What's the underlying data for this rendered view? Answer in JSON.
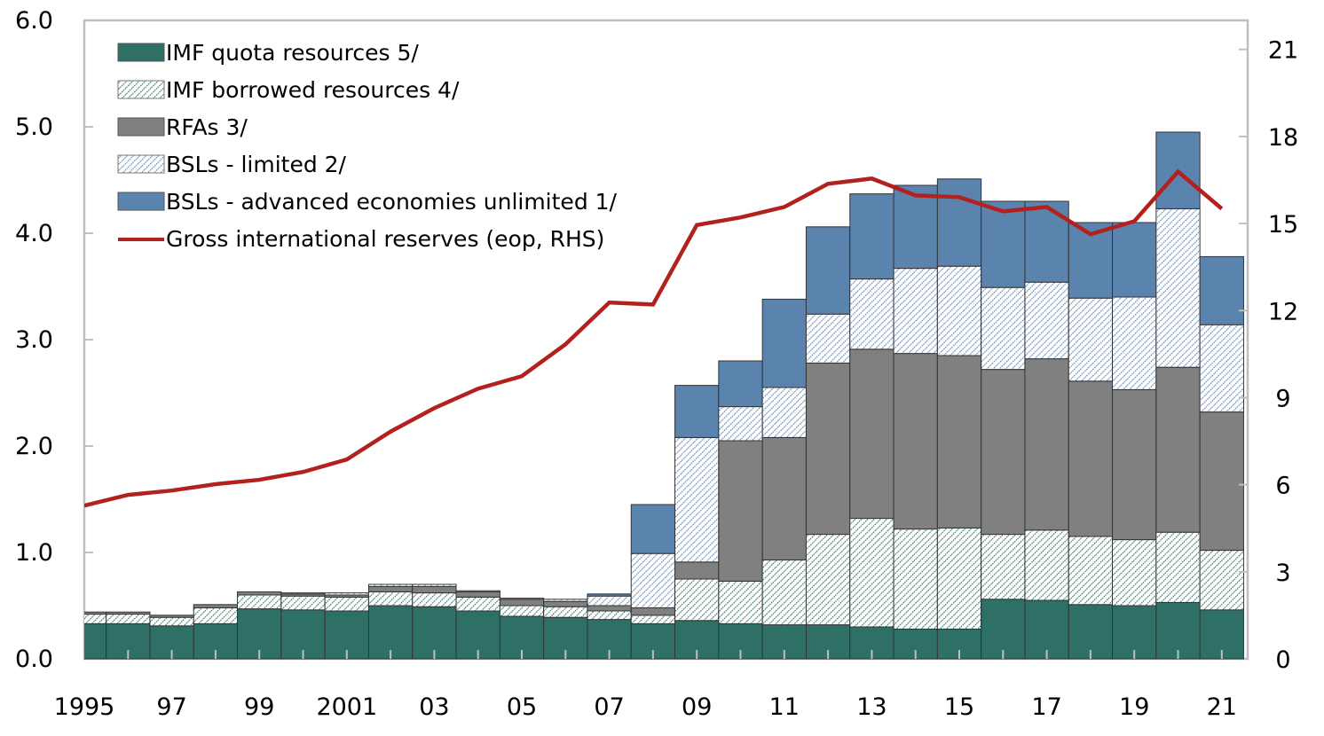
{
  "chart_data": {
    "type": "bar",
    "subtype": "stacked bar with line (secondary axis)",
    "title": "",
    "xlabel": "",
    "ylabel": "",
    "y2label": "",
    "categories": [
      1995,
      1996,
      1997,
      1998,
      1999,
      2000,
      2001,
      2002,
      2003,
      2004,
      2005,
      2006,
      2007,
      2008,
      2009,
      2010,
      2011,
      2012,
      2013,
      2014,
      2015,
      2016,
      2017,
      2018,
      2019,
      2020,
      2021
    ],
    "x_tick_labels": [
      {
        "year": 1995,
        "label": "1995"
      },
      {
        "year": 1997,
        "label": "97"
      },
      {
        "year": 1999,
        "label": "99"
      },
      {
        "year": 2001,
        "label": "2001"
      },
      {
        "year": 2003,
        "label": "03"
      },
      {
        "year": 2005,
        "label": "05"
      },
      {
        "year": 2007,
        "label": "07"
      },
      {
        "year": 2009,
        "label": "09"
      },
      {
        "year": 2011,
        "label": "11"
      },
      {
        "year": 2013,
        "label": "13"
      },
      {
        "year": 2015,
        "label": "15"
      },
      {
        "year": 2017,
        "label": "17"
      },
      {
        "year": 2019,
        "label": "19"
      },
      {
        "year": 2021,
        "label": "21"
      }
    ],
    "ylim": [
      0,
      6
    ],
    "yticks": [
      0,
      1,
      2,
      3,
      4,
      5,
      6
    ],
    "ytick_labels": [
      "0.0",
      "1.0",
      "2.0",
      "3.0",
      "4.0",
      "5.0",
      "6.0"
    ],
    "y2lim": [
      0,
      22
    ],
    "y2ticks": [
      0,
      3,
      6,
      9,
      12,
      15,
      18,
      21
    ],
    "y2tick_labels": [
      "0",
      "3",
      "6",
      "9",
      "12",
      "15",
      "18",
      "21"
    ],
    "grid": false,
    "legend_position": "top-left",
    "series": [
      {
        "name": "IMF quota resources 5/",
        "kind": "bar",
        "axis": "left",
        "fill": "solid",
        "color": "#2E7066",
        "values": [
          0.33,
          0.33,
          0.31,
          0.33,
          0.47,
          0.46,
          0.45,
          0.5,
          0.49,
          0.45,
          0.4,
          0.39,
          0.37,
          0.33,
          0.36,
          0.33,
          0.32,
          0.32,
          0.3,
          0.28,
          0.28,
          0.56,
          0.55,
          0.51,
          0.5,
          0.53,
          0.46
        ]
      },
      {
        "name": "IMF borrowed resources 4/",
        "kind": "bar",
        "axis": "left",
        "fill": "hatch",
        "color": "#2E7066",
        "values": [
          0.09,
          0.09,
          0.08,
          0.15,
          0.13,
          0.13,
          0.13,
          0.13,
          0.13,
          0.13,
          0.1,
          0.1,
          0.08,
          0.08,
          0.39,
          0.4,
          0.61,
          0.85,
          1.02,
          0.94,
          0.95,
          0.61,
          0.66,
          0.64,
          0.62,
          0.66,
          0.56
        ]
      },
      {
        "name": "RFAs 3/",
        "kind": "bar",
        "axis": "left",
        "fill": "solid",
        "color": "#808080",
        "values": [
          0.02,
          0.02,
          0.02,
          0.03,
          0.03,
          0.02,
          0.02,
          0.05,
          0.06,
          0.05,
          0.06,
          0.05,
          0.05,
          0.07,
          0.16,
          1.32,
          1.15,
          1.61,
          1.59,
          1.65,
          1.62,
          1.55,
          1.61,
          1.46,
          1.41,
          1.55,
          1.3
        ]
      },
      {
        "name": "BSLs - limited 2/",
        "kind": "bar",
        "axis": "left",
        "fill": "hatch",
        "color": "#5A83AD",
        "values": [
          0.0,
          0.0,
          0.0,
          0.0,
          0.0,
          0.01,
          0.02,
          0.02,
          0.02,
          0.01,
          0.01,
          0.02,
          0.09,
          0.51,
          1.17,
          0.32,
          0.47,
          0.46,
          0.66,
          0.8,
          0.84,
          0.77,
          0.72,
          0.78,
          0.87,
          1.49,
          0.82
        ]
      },
      {
        "name": "BSLs - advanced economies unlimited 1/",
        "kind": "bar",
        "axis": "left",
        "fill": "solid",
        "color": "#5A83AD",
        "values": [
          0.0,
          0.0,
          0.0,
          0.0,
          0.0,
          0.0,
          0.0,
          0.0,
          0.0,
          0.0,
          0.0,
          0.0,
          0.02,
          0.46,
          0.49,
          0.43,
          0.83,
          0.82,
          0.8,
          0.78,
          0.82,
          0.81,
          0.76,
          0.71,
          0.7,
          0.72,
          0.64
        ]
      },
      {
        "name": "Gross international reserves (eop, RHS)",
        "kind": "line",
        "axis": "right",
        "color": "#B2211E",
        "values": [
          5.28,
          5.65,
          5.8,
          6.02,
          6.17,
          6.44,
          6.87,
          7.83,
          8.64,
          9.31,
          9.74,
          10.84,
          12.28,
          12.21,
          14.95,
          15.21,
          15.57,
          16.37,
          16.55,
          15.97,
          15.91,
          15.42,
          15.57,
          14.63,
          15.08,
          16.79,
          15.51
        ]
      }
    ]
  }
}
